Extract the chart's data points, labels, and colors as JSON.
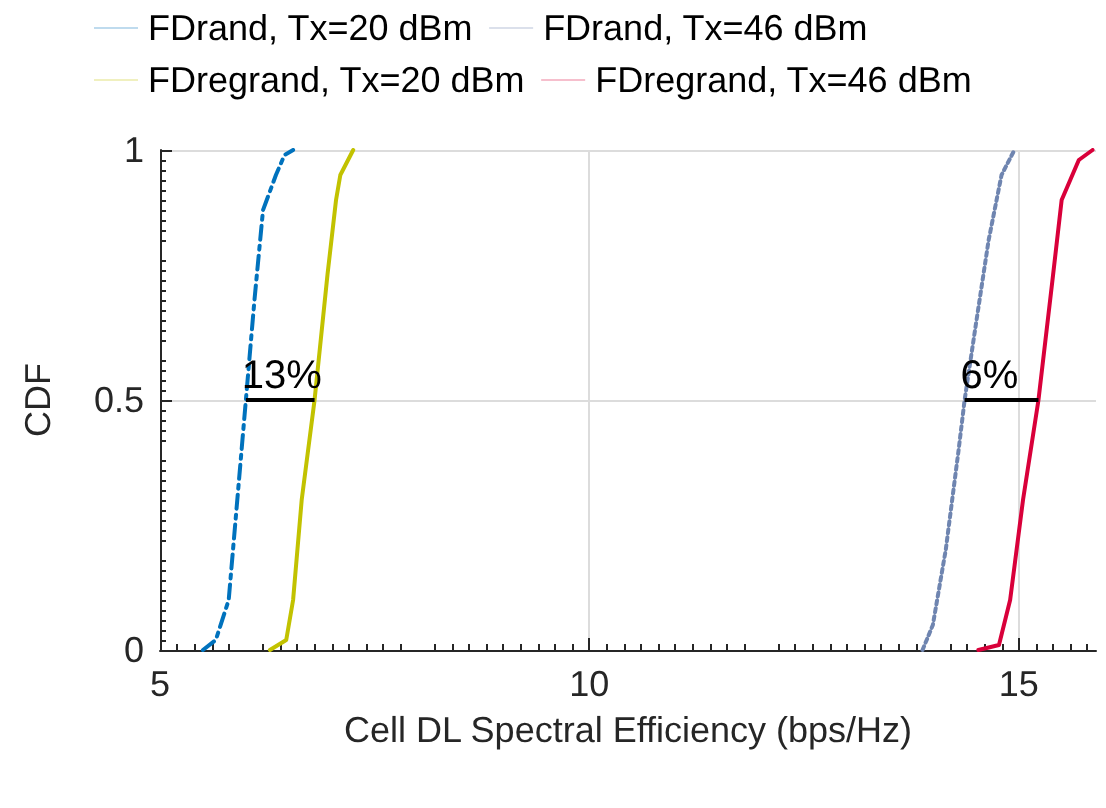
{
  "chart_data": {
    "type": "line",
    "xlabel": "Cell DL Spectral Efficiency (bps/Hz)",
    "ylabel": "CDF",
    "xlim": [
      5,
      15.9
    ],
    "xticks": [
      5,
      10,
      15
    ],
    "ylim": [
      0,
      1
    ],
    "yticks": [
      0,
      0.5,
      1
    ],
    "grid": true,
    "legend": "top",
    "marker": "none",
    "series": [
      {
        "name": "FDrand, Tx=20 dBm",
        "color": "#0072bd",
        "line_style": "dashed",
        "x": [
          5.5,
          5.65,
          5.8,
          5.9,
          6.0,
          6.1,
          6.2,
          6.35,
          6.45,
          6.55
        ],
        "values": [
          0,
          0.02,
          0.1,
          0.3,
          0.5,
          0.7,
          0.88,
          0.95,
          0.99,
          1
        ]
      },
      {
        "name": "FDrand, Tx=46 dBm",
        "color": "#6f85b0",
        "line_style": "dotted",
        "x": [
          13.88,
          14.0,
          14.15,
          14.3,
          14.37,
          14.5,
          14.65,
          14.8,
          14.95
        ],
        "values": [
          0,
          0.05,
          0.2,
          0.4,
          0.5,
          0.65,
          0.82,
          0.95,
          1
        ]
      },
      {
        "name": "FDregrand, Tx=20 dBm",
        "color": "#c2c200",
        "line_style": "solid",
        "x": [
          6.28,
          6.47,
          6.55,
          6.65,
          6.8,
          6.95,
          7.05,
          7.1,
          7.25
        ],
        "values": [
          0,
          0.02,
          0.1,
          0.3,
          0.5,
          0.75,
          0.9,
          0.95,
          1
        ]
      },
      {
        "name": "FDregrand, Tx=46 dBm",
        "color": "#d9003a",
        "line_style": "solid",
        "x": [
          14.53,
          14.77,
          14.9,
          15.05,
          15.23,
          15.4,
          15.5,
          15.6,
          15.7,
          15.86
        ],
        "values": [
          0,
          0.01,
          0.1,
          0.3,
          0.5,
          0.75,
          0.9,
          0.94,
          0.98,
          1
        ]
      }
    ],
    "annotations": [
      {
        "text": "13%",
        "x": 6.0,
        "y": 0.5
      },
      {
        "text": "6%",
        "x": 14.37,
        "y": 0.5
      }
    ]
  }
}
